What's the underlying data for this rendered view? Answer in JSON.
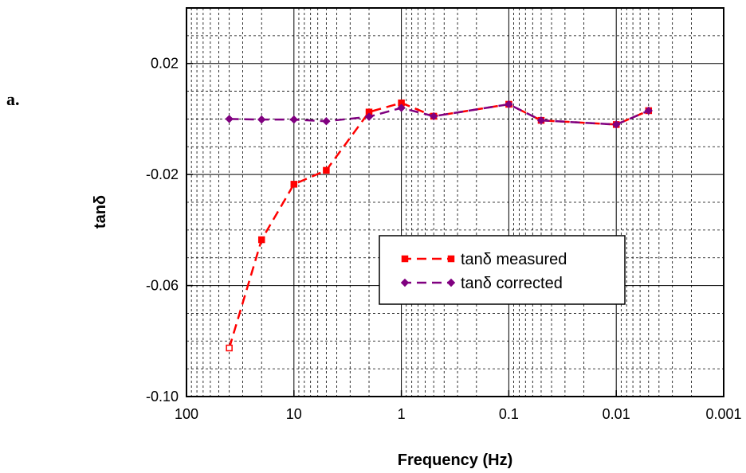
{
  "panel_label": "a.",
  "chart_data": {
    "type": "line",
    "xlabel": "Frequency (Hz)",
    "ylabel": "tanδ",
    "x_scale": "log",
    "x_reversed": true,
    "xlim": [
      100,
      0.001
    ],
    "ylim": [
      -0.1,
      0.04
    ],
    "x_ticks": [
      100,
      10,
      1,
      0.1,
      0.01,
      0.001
    ],
    "x_tick_labels": [
      "100",
      "10",
      "1",
      "0.1",
      "0.01",
      "0.001"
    ],
    "y_ticks": [
      -0.1,
      -0.06,
      -0.02,
      0.02
    ],
    "y_tick_labels": [
      "-0.10",
      "-0.06",
      "-0.02",
      "0.02"
    ],
    "grid": true,
    "legend_position": "center-right",
    "series": [
      {
        "name": "tanδ measured",
        "color": "#ff0000",
        "marker": "square",
        "line": "dashed",
        "x": [
          40,
          20,
          10,
          5,
          2,
          1,
          0.5,
          0.1,
          0.05,
          0.01,
          0.005
        ],
        "y": [
          -0.0825,
          -0.0435,
          -0.0235,
          -0.0185,
          0.0025,
          0.0058,
          0.001,
          0.0053,
          -0.0005,
          -0.002,
          0.003
        ]
      },
      {
        "name": "tanδ corrected",
        "color": "#800080",
        "marker": "diamond",
        "line": "dashed",
        "x": [
          40,
          20,
          10,
          5,
          2,
          1,
          0.5,
          0.1,
          0.05,
          0.01,
          0.005
        ],
        "y": [
          0.0,
          -0.0002,
          -0.0002,
          -0.0008,
          0.0008,
          0.004,
          0.001,
          0.0053,
          -0.0005,
          -0.002,
          0.003
        ]
      }
    ]
  }
}
